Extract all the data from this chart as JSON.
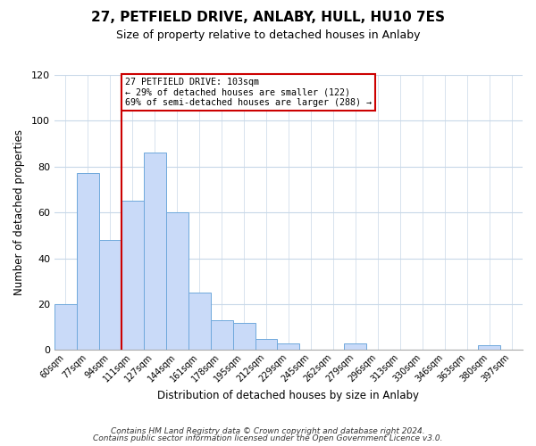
{
  "title": "27, PETFIELD DRIVE, ANLABY, HULL, HU10 7ES",
  "subtitle": "Size of property relative to detached houses in Anlaby",
  "xlabel": "Distribution of detached houses by size in Anlaby",
  "ylabel": "Number of detached properties",
  "categories": [
    "60sqm",
    "77sqm",
    "94sqm",
    "111sqm",
    "127sqm",
    "144sqm",
    "161sqm",
    "178sqm",
    "195sqm",
    "212sqm",
    "229sqm",
    "245sqm",
    "262sqm",
    "279sqm",
    "296sqm",
    "313sqm",
    "330sqm",
    "346sqm",
    "363sqm",
    "380sqm",
    "397sqm"
  ],
  "values": [
    20,
    77,
    48,
    65,
    86,
    60,
    25,
    13,
    12,
    5,
    3,
    0,
    0,
    3,
    0,
    0,
    0,
    0,
    0,
    2,
    0
  ],
  "bar_color": "#c9daf8",
  "bar_edge_color": "#6fa8dc",
  "ylim": [
    0,
    120
  ],
  "yticks": [
    0,
    20,
    40,
    60,
    80,
    100,
    120
  ],
  "red_line_x": 2.5,
  "annotation_title": "27 PETFIELD DRIVE: 103sqm",
  "annotation_line1": "← 29% of detached houses are smaller (122)",
  "annotation_line2": "69% of semi-detached houses are larger (288) →",
  "annotation_box_color": "#ffffff",
  "annotation_box_edge_color": "#cc0000",
  "footer1": "Contains HM Land Registry data © Crown copyright and database right 2024.",
  "footer2": "Contains public sector information licensed under the Open Government Licence v3.0.",
  "background_color": "#ffffff",
  "grid_color": "#c8d8e8"
}
